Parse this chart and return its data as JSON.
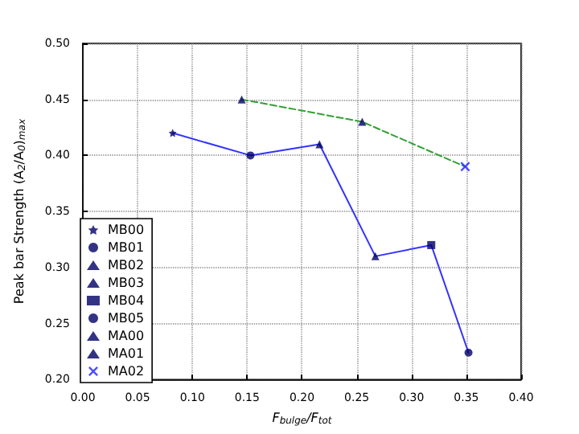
{
  "chart_data": {
    "type": "scatter",
    "xlabel": "F$_{bulge}$/F$_{tot}$",
    "ylabel": "Peak bar Strength (A$_{2}$/A$_{0}$)$_{max}$",
    "xlim": [
      0,
      0.4
    ],
    "xticks": [
      {
        "value": 0,
        "label": "0.00"
      },
      0.05,
      {
        "value": 0.1,
        "label": "0.10"
      },
      0.15,
      {
        "value": 0.2,
        "label": "0.20"
      },
      0.25,
      {
        "value": 0.3,
        "label": "0.30"
      },
      0.35,
      {
        "value": 0.4,
        "label": "0.40"
      }
    ],
    "ylim": [
      0.2,
      0.5
    ],
    "yticks": [
      {
        "value": 0.2,
        "label": "0.20"
      },
      0.25,
      {
        "value": 0.3,
        "label": "0.30"
      },
      0.35,
      {
        "value": 0.4,
        "label": "0.40"
      },
      0.45,
      {
        "value": 0.5,
        "label": "0.50"
      }
    ],
    "grid": true,
    "legend": "bottom left",
    "series": [
      {
        "type": "line",
        "color": "#3333ff",
        "line_style": "solid",
        "marker": "none",
        "x": [
          0.082,
          0.153,
          0.216,
          0.267,
          0.318,
          0.352
        ],
        "values": [
          0.42,
          0.4,
          0.41,
          0.31,
          0.32,
          0.224
        ]
      },
      {
        "type": "line",
        "color": "#33a033",
        "line_style": "dashed",
        "marker": "none",
        "x": [
          0.145,
          0.255,
          0.349
        ],
        "values": [
          0.45,
          0.43,
          0.39
        ]
      },
      {
        "name": "MB00",
        "color": "#000066",
        "marker": "star",
        "x": [
          0.082
        ],
        "values": [
          0.42
        ]
      },
      {
        "name": "MB01",
        "color": "#000066",
        "marker": "circle",
        "x": [
          0.153
        ],
        "values": [
          0.4
        ]
      },
      {
        "name": "MB02",
        "color": "#000066",
        "marker": "triangle",
        "x": [
          0.216
        ],
        "values": [
          0.41
        ]
      },
      {
        "name": "MB03",
        "color": "#000066",
        "marker": "triangle",
        "x": [
          0.267
        ],
        "values": [
          0.31
        ]
      },
      {
        "name": "MB04",
        "color": "#000066",
        "marker": "square",
        "x": [
          0.318
        ],
        "values": [
          0.32
        ]
      },
      {
        "name": "MB05",
        "color": "#000066",
        "marker": "circle",
        "x": [
          0.352
        ],
        "values": [
          0.224
        ]
      },
      {
        "name": "MA00",
        "color": "#000066",
        "marker": "triangle",
        "x": [
          0.145
        ],
        "values": [
          0.45
        ]
      },
      {
        "name": "MA01",
        "color": "#000066",
        "marker": "triangle",
        "x": [
          0.255
        ],
        "values": [
          0.43
        ]
      },
      {
        "name": "MA02",
        "color": "#2222ff",
        "marker": "cross",
        "x": [
          0.349
        ],
        "values": [
          0.39
        ]
      }
    ]
  }
}
